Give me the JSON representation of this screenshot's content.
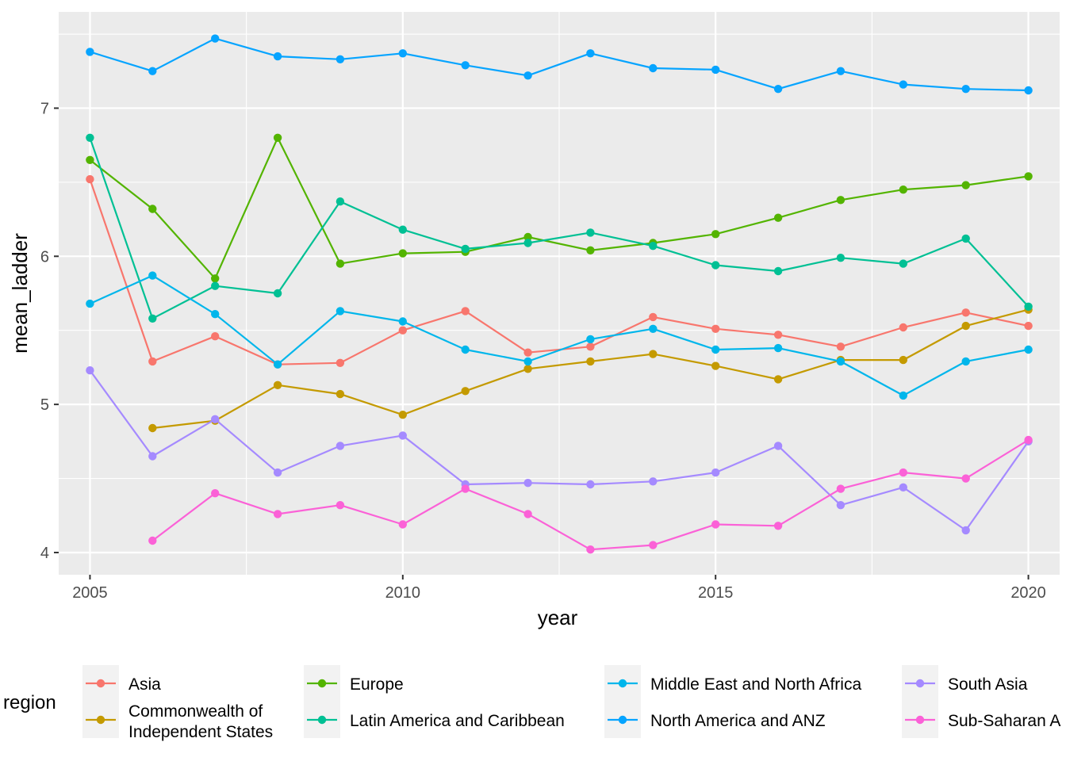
{
  "chart_data": {
    "type": "line",
    "xlabel": "year",
    "ylabel": "mean_ladder",
    "xlim": [
      2004.5,
      2020.5
    ],
    "ylim": [
      3.85,
      7.65
    ],
    "x_ticks": [
      2005,
      2010,
      2015,
      2020
    ],
    "x_tick_labels": [
      "2005",
      "2010",
      "2015",
      "2020"
    ],
    "y_ticks": [
      4,
      5,
      6,
      7
    ],
    "y_tick_labels": [
      "4",
      "5",
      "6",
      "7"
    ],
    "grid": true,
    "legend": {
      "title": "region",
      "position": "bottom"
    },
    "series": [
      {
        "name": "Asia",
        "color": "#F8766D",
        "points": [
          [
            2005,
            6.52
          ],
          [
            2006,
            5.29
          ],
          [
            2007,
            5.46
          ],
          [
            2008,
            5.27
          ],
          [
            2009,
            5.28
          ],
          [
            2010,
            5.5
          ],
          [
            2011,
            5.63
          ],
          [
            2012,
            5.35
          ],
          [
            2013,
            5.39
          ],
          [
            2014,
            5.59
          ],
          [
            2015,
            5.51
          ],
          [
            2016,
            5.47
          ],
          [
            2017,
            5.39
          ],
          [
            2018,
            5.52
          ],
          [
            2019,
            5.62
          ],
          [
            2020,
            5.53
          ]
        ]
      },
      {
        "name": "Commonwealth of Independent States",
        "label_lines": [
          "Commonwealth of",
          "Independent States"
        ],
        "color": "#C49A00",
        "points": [
          [
            2006,
            4.84
          ],
          [
            2007,
            4.89
          ],
          [
            2008,
            5.13
          ],
          [
            2009,
            5.07
          ],
          [
            2010,
            4.93
          ],
          [
            2011,
            5.09
          ],
          [
            2012,
            5.24
          ],
          [
            2013,
            5.29
          ],
          [
            2014,
            5.34
          ],
          [
            2015,
            5.26
          ],
          [
            2016,
            5.17
          ],
          [
            2017,
            5.3
          ],
          [
            2018,
            5.3
          ],
          [
            2019,
            5.53
          ],
          [
            2020,
            5.64
          ]
        ]
      },
      {
        "name": "Europe",
        "color": "#53B400",
        "points": [
          [
            2005,
            6.65
          ],
          [
            2006,
            6.32
          ],
          [
            2007,
            5.85
          ],
          [
            2008,
            6.8
          ],
          [
            2009,
            5.95
          ],
          [
            2010,
            6.02
          ],
          [
            2011,
            6.03
          ],
          [
            2012,
            6.13
          ],
          [
            2013,
            6.04
          ],
          [
            2014,
            6.09
          ],
          [
            2015,
            6.15
          ],
          [
            2016,
            6.26
          ],
          [
            2017,
            6.38
          ],
          [
            2018,
            6.45
          ],
          [
            2019,
            6.48
          ],
          [
            2020,
            6.54
          ]
        ]
      },
      {
        "name": "Latin America and Caribbean",
        "color": "#00C094",
        "points": [
          [
            2005,
            6.8
          ],
          [
            2006,
            5.58
          ],
          [
            2007,
            5.8
          ],
          [
            2008,
            5.75
          ],
          [
            2009,
            6.37
          ],
          [
            2010,
            6.18
          ],
          [
            2011,
            6.05
          ],
          [
            2012,
            6.09
          ],
          [
            2013,
            6.16
          ],
          [
            2014,
            6.07
          ],
          [
            2015,
            5.94
          ],
          [
            2016,
            5.9
          ],
          [
            2017,
            5.99
          ],
          [
            2018,
            5.95
          ],
          [
            2019,
            6.12
          ],
          [
            2020,
            5.66
          ]
        ]
      },
      {
        "name": "Middle East and North Africa",
        "color": "#00B6EB",
        "points": [
          [
            2005,
            5.68
          ],
          [
            2006,
            5.87
          ],
          [
            2007,
            5.61
          ],
          [
            2008,
            5.27
          ],
          [
            2009,
            5.63
          ],
          [
            2010,
            5.56
          ],
          [
            2011,
            5.37
          ],
          [
            2012,
            5.29
          ],
          [
            2013,
            5.44
          ],
          [
            2014,
            5.51
          ],
          [
            2015,
            5.37
          ],
          [
            2016,
            5.38
          ],
          [
            2017,
            5.29
          ],
          [
            2018,
            5.06
          ],
          [
            2019,
            5.29
          ],
          [
            2020,
            5.37
          ]
        ]
      },
      {
        "name": "North America and ANZ",
        "color": "#06A4FF",
        "points": [
          [
            2005,
            7.38
          ],
          [
            2006,
            7.25
          ],
          [
            2007,
            7.47
          ],
          [
            2008,
            7.35
          ],
          [
            2009,
            7.33
          ],
          [
            2010,
            7.37
          ],
          [
            2011,
            7.29
          ],
          [
            2012,
            7.22
          ],
          [
            2013,
            7.37
          ],
          [
            2014,
            7.27
          ],
          [
            2015,
            7.26
          ],
          [
            2016,
            7.13
          ],
          [
            2017,
            7.25
          ],
          [
            2018,
            7.16
          ],
          [
            2019,
            7.13
          ],
          [
            2020,
            7.12
          ]
        ]
      },
      {
        "name": "South Asia",
        "color": "#A58AFF",
        "points": [
          [
            2005,
            5.23
          ],
          [
            2006,
            4.65
          ],
          [
            2007,
            4.9
          ],
          [
            2008,
            4.54
          ],
          [
            2009,
            4.72
          ],
          [
            2010,
            4.79
          ],
          [
            2011,
            4.46
          ],
          [
            2012,
            4.47
          ],
          [
            2013,
            4.46
          ],
          [
            2014,
            4.48
          ],
          [
            2015,
            4.54
          ],
          [
            2016,
            4.72
          ],
          [
            2017,
            4.32
          ],
          [
            2018,
            4.44
          ],
          [
            2019,
            4.15
          ],
          [
            2020,
            4.75
          ]
        ]
      },
      {
        "name": "Sub-Saharan Africa",
        "visible_label": "Sub-Saharan A",
        "color": "#FB61D7",
        "points": [
          [
            2006,
            4.08
          ],
          [
            2007,
            4.4
          ],
          [
            2008,
            4.26
          ],
          [
            2009,
            4.32
          ],
          [
            2010,
            4.19
          ],
          [
            2011,
            4.43
          ],
          [
            2012,
            4.26
          ],
          [
            2013,
            4.02
          ],
          [
            2014,
            4.05
          ],
          [
            2015,
            4.19
          ],
          [
            2016,
            4.18
          ],
          [
            2017,
            4.43
          ],
          [
            2018,
            4.54
          ],
          [
            2019,
            4.5
          ],
          [
            2020,
            4.76
          ]
        ]
      }
    ]
  }
}
